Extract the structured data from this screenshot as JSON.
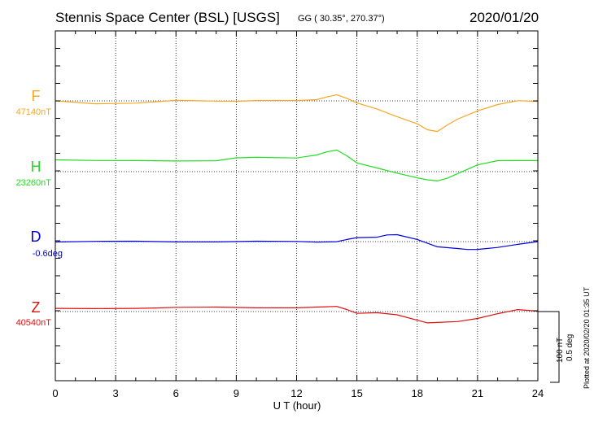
{
  "header": {
    "station": "Stennis Space Center (BSL)  [USGS]",
    "coords": "GG ( 30.35°, 270.37°)",
    "date": "2020/01/20"
  },
  "plotted_note": "Plotted at 2020/02/20 01:35 UT",
  "scale": {
    "nt": "100 nT",
    "deg": "0.5 deg"
  },
  "chart_data": {
    "type": "line",
    "xlabel": "U T (hour)",
    "xlim": [
      0,
      24
    ],
    "xticks": [
      "0",
      "3",
      "6",
      "9",
      "12",
      "15",
      "18",
      "21",
      "24"
    ],
    "grid": true,
    "series": [
      {
        "name": "F",
        "baseline": "47140nT",
        "color": "#f5a623",
        "x": [
          0,
          2,
          4,
          6,
          8,
          9,
          10,
          12,
          13,
          13.5,
          14,
          14.5,
          15,
          16,
          17,
          18,
          18.5,
          19,
          19.5,
          20,
          21,
          22,
          23,
          24
        ],
        "y": [
          0,
          -3,
          -3,
          0,
          0,
          0,
          0,
          0,
          2,
          5,
          7,
          3,
          -2,
          -10,
          -20,
          -28,
          -35,
          -38,
          -30,
          -22,
          -12,
          -5,
          0,
          0
        ]
      },
      {
        "name": "H",
        "baseline": "23260nT",
        "color": "#22dd22",
        "x": [
          0,
          2,
          4,
          6,
          8,
          9,
          10,
          12,
          13,
          13.5,
          14,
          14.5,
          15,
          16,
          17,
          18,
          18.5,
          19,
          19.5,
          20,
          21,
          22,
          23,
          24
        ],
        "y": [
          15,
          14,
          13,
          13,
          14,
          17,
          17,
          17,
          21,
          24,
          26,
          20,
          11,
          4,
          -2,
          -7,
          -10,
          -12,
          -8,
          -2,
          8,
          13,
          14,
          14
        ]
      },
      {
        "name": "D",
        "baseline": "-0.6deg",
        "color": "#0000dd",
        "x": [
          0,
          2,
          4,
          6,
          8,
          10,
          12,
          13,
          14,
          14.5,
          15,
          16,
          16.5,
          17,
          18,
          19,
          20,
          20.5,
          21,
          22,
          23,
          24
        ],
        "y": [
          0,
          0,
          0,
          0,
          0,
          0,
          0,
          0,
          0,
          2,
          5,
          6,
          8,
          8,
          3,
          -6,
          -9,
          -10,
          -9,
          -7,
          -4,
          0
        ]
      },
      {
        "name": "Z",
        "baseline": "40540nT",
        "color": "#dd1111",
        "x": [
          0,
          2,
          4,
          5,
          6,
          8,
          10,
          12,
          13,
          14,
          14.5,
          15,
          16,
          17,
          18,
          18.5,
          19,
          20,
          21,
          22,
          23,
          24
        ],
        "y": [
          4,
          3,
          4,
          5,
          5,
          5,
          5,
          5,
          5,
          6,
          3,
          -2,
          -2,
          -4,
          -10,
          -14,
          -14,
          -12,
          -8,
          -3,
          2,
          1
        ]
      }
    ]
  }
}
